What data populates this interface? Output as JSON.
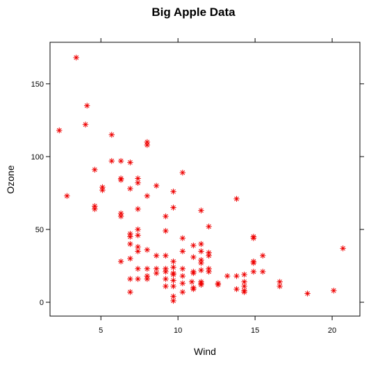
{
  "chart_data": {
    "type": "scatter",
    "title": "Big Apple Data",
    "xlabel": "Wind",
    "ylabel": "Ozone",
    "xlim": [
      1.7,
      21.8
    ],
    "ylim": [
      -9.5,
      178.5
    ],
    "xticks": [
      5,
      10,
      15,
      20
    ],
    "yticks": [
      0,
      50,
      100,
      150
    ],
    "grid": false,
    "marker": "asterisk",
    "marker_color": "#ee0000",
    "series": [
      {
        "points": [
          [
            3.4,
            168
          ],
          [
            4.1,
            135
          ],
          [
            4.0,
            122
          ],
          [
            2.3,
            118
          ],
          [
            5.7,
            115
          ],
          [
            8.0,
            110
          ],
          [
            8.0,
            108
          ],
          [
            5.7,
            97
          ],
          [
            6.3,
            97
          ],
          [
            6.9,
            96
          ],
          [
            4.6,
            91
          ],
          [
            10.3,
            89
          ],
          [
            6.3,
            85
          ],
          [
            6.3,
            84
          ],
          [
            7.4,
            85
          ],
          [
            7.4,
            82
          ],
          [
            8.6,
            80
          ],
          [
            5.1,
            79
          ],
          [
            5.1,
            77
          ],
          [
            6.9,
            78
          ],
          [
            9.7,
            76
          ],
          [
            2.8,
            73
          ],
          [
            8.0,
            73
          ],
          [
            13.8,
            71
          ],
          [
            4.6,
            66
          ],
          [
            4.6,
            64
          ],
          [
            7.4,
            64
          ],
          [
            9.7,
            65
          ],
          [
            11.5,
            63
          ],
          [
            6.3,
            61
          ],
          [
            6.3,
            59
          ],
          [
            9.2,
            59
          ],
          [
            12.0,
            52
          ],
          [
            7.4,
            50
          ],
          [
            9.2,
            49
          ],
          [
            6.9,
            47
          ],
          [
            7.4,
            46
          ],
          [
            6.9,
            45
          ],
          [
            10.3,
            44
          ],
          [
            14.9,
            45
          ],
          [
            14.9,
            44
          ],
          [
            6.9,
            40
          ],
          [
            7.4,
            38
          ],
          [
            11.5,
            40
          ],
          [
            11.0,
            39
          ],
          [
            8.0,
            36
          ],
          [
            7.4,
            35
          ],
          [
            10.3,
            35
          ],
          [
            11.5,
            35
          ],
          [
            12.0,
            34
          ],
          [
            12.0,
            32
          ],
          [
            15.5,
            32
          ],
          [
            6.9,
            30
          ],
          [
            8.6,
            32
          ],
          [
            9.2,
            32
          ],
          [
            9.7,
            28
          ],
          [
            6.3,
            28
          ],
          [
            11.0,
            31
          ],
          [
            11.5,
            29
          ],
          [
            11.5,
            27
          ],
          [
            14.9,
            28
          ],
          [
            14.9,
            27
          ],
          [
            7.4,
            23
          ],
          [
            8.0,
            23
          ],
          [
            8.6,
            23
          ],
          [
            9.2,
            23
          ],
          [
            9.7,
            24
          ],
          [
            10.3,
            23
          ],
          [
            11.0,
            21
          ],
          [
            11.5,
            22
          ],
          [
            12.0,
            23
          ],
          [
            13.2,
            18
          ],
          [
            13.8,
            18
          ],
          [
            14.9,
            21
          ],
          [
            15.5,
            21
          ],
          [
            6.9,
            16
          ],
          [
            7.4,
            16
          ],
          [
            8.0,
            18
          ],
          [
            8.0,
            16
          ],
          [
            8.6,
            20
          ],
          [
            9.2,
            21
          ],
          [
            9.7,
            19
          ],
          [
            9.7,
            20
          ],
          [
            10.3,
            18
          ],
          [
            11.0,
            20
          ],
          [
            12.0,
            21
          ],
          [
            14.3,
            19
          ],
          [
            9.2,
            16
          ],
          [
            9.7,
            15
          ],
          [
            10.3,
            13
          ],
          [
            10.9,
            14
          ],
          [
            11.5,
            14
          ],
          [
            11.5,
            13
          ],
          [
            11.5,
            12
          ],
          [
            12.6,
            13
          ],
          [
            12.6,
            12
          ],
          [
            14.3,
            14
          ],
          [
            14.3,
            11
          ],
          [
            9.2,
            11
          ],
          [
            9.7,
            11
          ],
          [
            11.0,
            9
          ],
          [
            11.0,
            10
          ],
          [
            13.8,
            9
          ],
          [
            14.3,
            8
          ],
          [
            14.3,
            7
          ],
          [
            16.6,
            14
          ],
          [
            16.6,
            11
          ],
          [
            10.3,
            7
          ],
          [
            6.9,
            7
          ],
          [
            9.7,
            4
          ],
          [
            9.7,
            1
          ],
          [
            18.4,
            6
          ],
          [
            20.1,
            8
          ],
          [
            20.7,
            37
          ]
        ]
      }
    ]
  }
}
